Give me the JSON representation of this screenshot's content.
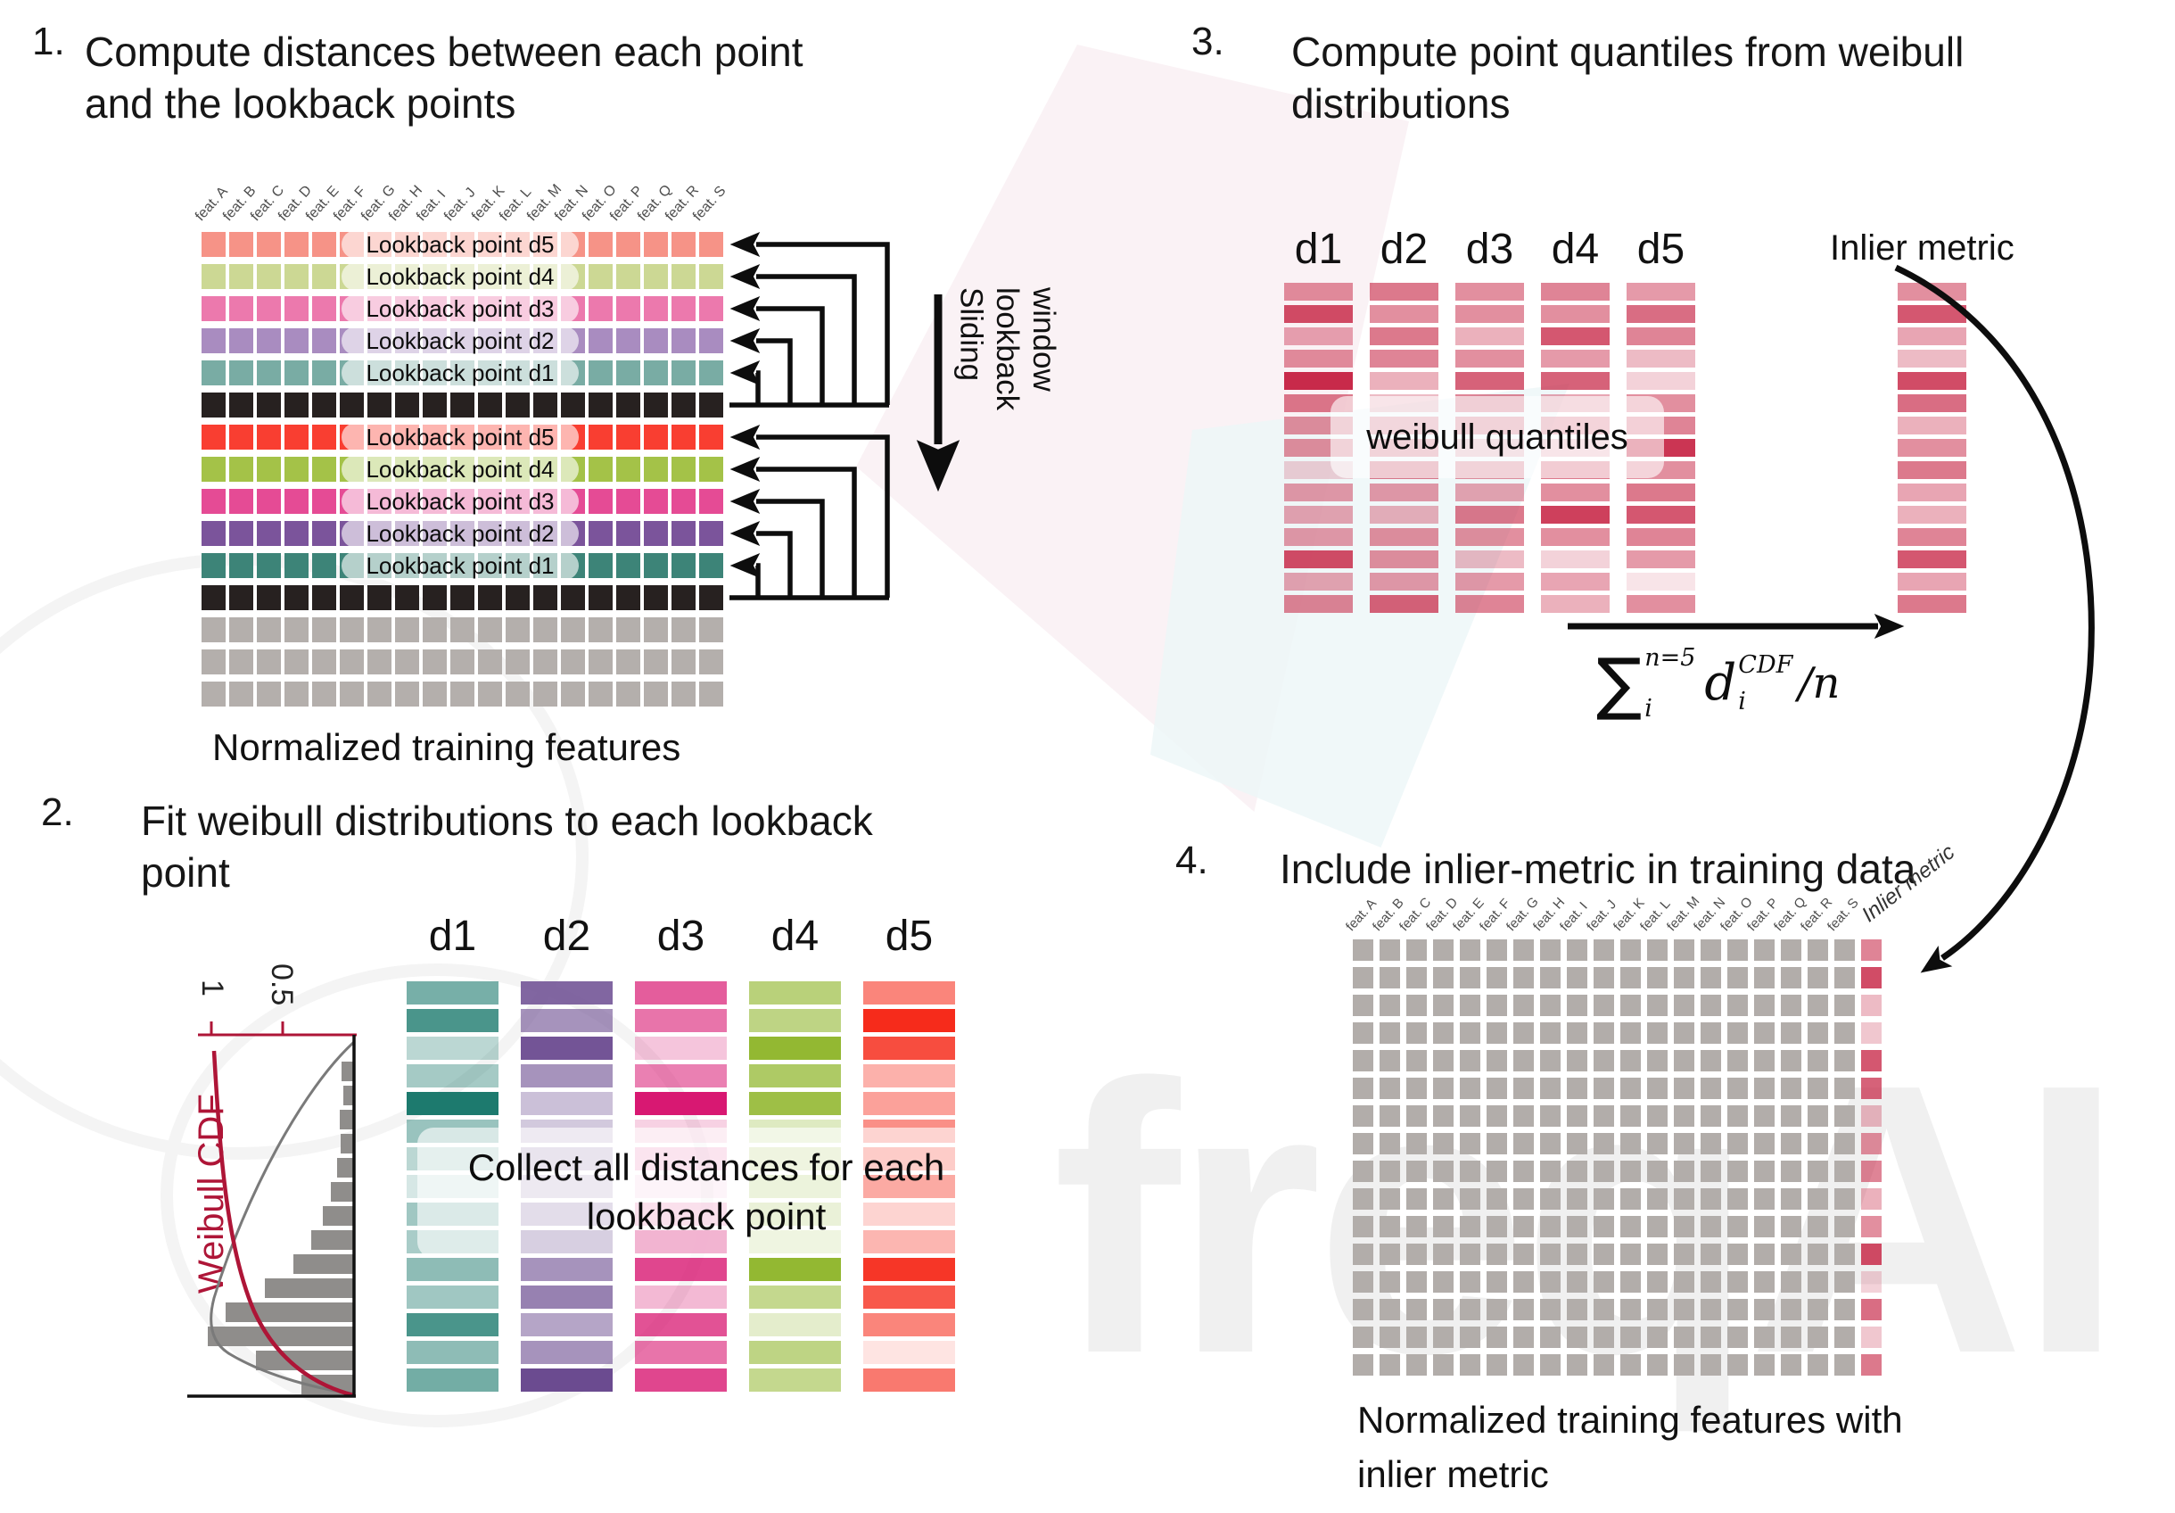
{
  "watermark": {
    "text": "freqAI"
  },
  "features": [
    "feat. A",
    "feat. B",
    "feat. C",
    "feat. D",
    "feat. E",
    "feat. F",
    "feat. G",
    "feat. H",
    "feat. I",
    "feat. J",
    "feat. K",
    "feat. L",
    "feat. M",
    "feat. N",
    "feat. O",
    "feat. P",
    "feat. Q",
    "feat. R",
    "feat. S"
  ],
  "d_labels": [
    "d1",
    "d2",
    "d3",
    "d4",
    "d5"
  ],
  "colors": {
    "black_cell": "#272120",
    "gray_cell": "#b4afac",
    "arrow": "#0d0d0d",
    "crimson_axis": "#ae1537",
    "hist_bar": "#8f8d8b",
    "p3_base": "#c51f40",
    "p4_gray": "#b2adaa"
  },
  "p1": {
    "number": "1.",
    "title": "Compute distances between each point and the lookback points",
    "caption": "Normalized training features",
    "sliding_label": "Sliding lookback window",
    "rows": [
      {
        "kind": "lookback",
        "color": "#f69387",
        "label": "Lookback point d5"
      },
      {
        "kind": "lookback",
        "color": "#ccd894",
        "label": "Lookback point d4"
      },
      {
        "kind": "lookback",
        "color": "#ec79ad",
        "label": "Lookback point d3"
      },
      {
        "kind": "lookback",
        "color": "#a98cc0",
        "label": "Lookback point d2"
      },
      {
        "kind": "lookback",
        "color": "#79aca4",
        "label": "Lookback point d1"
      },
      {
        "kind": "current",
        "color": "#272120"
      },
      {
        "kind": "lookback",
        "color": "#f93e31",
        "label": "Lookback point d5"
      },
      {
        "kind": "lookback",
        "color": "#a4c248",
        "label": "Lookback point d4"
      },
      {
        "kind": "lookback",
        "color": "#e54b95",
        "label": "Lookback point d3"
      },
      {
        "kind": "lookback",
        "color": "#7b549b",
        "label": "Lookback point d2"
      },
      {
        "kind": "lookback",
        "color": "#3d8478",
        "label": "Lookback point d1"
      },
      {
        "kind": "current",
        "color": "#272120"
      },
      {
        "kind": "plain",
        "color": "#b4afac"
      },
      {
        "kind": "plain",
        "color": "#b4afac"
      },
      {
        "kind": "plain",
        "color": "#b4afac"
      }
    ]
  },
  "p2": {
    "number": "2.",
    "title": "Fit weibull distributions to each lookback point",
    "note": "Collect all distances for each lookback point",
    "plot": {
      "cdf_label": "Weibull CDF",
      "ticks": [
        "1",
        "0.5"
      ],
      "hist": [
        14,
        12,
        16,
        15,
        19,
        26,
        35,
        48,
        68,
        100,
        144,
        164,
        110,
        59
      ]
    },
    "columns": [
      {
        "name": "d1",
        "color": "#1d7a6e",
        "opacities": [
          0.6,
          0.8,
          0.3,
          0.4,
          1.0,
          0.45,
          0.3,
          0.18,
          0.42,
          0.38,
          0.5,
          0.42,
          0.8,
          0.5,
          0.62
        ]
      },
      {
        "name": "d2",
        "color": "#6b4b90",
        "opacities": [
          0.85,
          0.6,
          0.95,
          0.6,
          0.35,
          0.3,
          0.4,
          0.32,
          0.5,
          0.7,
          0.6,
          0.7,
          0.5,
          0.6,
          1.0
        ]
      },
      {
        "name": "d3",
        "color": "#d81872",
        "opacities": [
          0.7,
          0.6,
          0.25,
          0.55,
          1.0,
          0.2,
          0.3,
          0.12,
          0.35,
          0.85,
          0.8,
          0.3,
          0.75,
          0.6,
          0.8
        ]
      },
      {
        "name": "d4",
        "color": "#93b832",
        "opacities": [
          0.65,
          0.6,
          1.0,
          0.75,
          0.9,
          0.3,
          0.4,
          0.45,
          0.5,
          0.38,
          1.0,
          0.55,
          0.25,
          0.6,
          0.55
        ]
      },
      {
        "name": "d5",
        "color": "#f5200f",
        "opacities": [
          0.55,
          0.95,
          0.8,
          0.35,
          0.42,
          0.5,
          0.6,
          1.0,
          0.5,
          0.85,
          0.9,
          0.75,
          0.55,
          0.12,
          0.6
        ]
      }
    ]
  },
  "p3": {
    "number": "3.",
    "title": "Compute point quantiles from weibull distributions",
    "overlay": "weibull quantiles",
    "inlier_header": "Inlier metric",
    "columns": [
      {
        "name": "d1",
        "opacities": [
          0.5,
          0.8,
          0.4,
          0.5,
          0.95,
          0.6,
          0.5,
          0.5,
          0.2,
          0.45,
          0.4,
          0.45,
          0.8,
          0.4,
          0.55
        ]
      },
      {
        "name": "d2",
        "opacities": [
          0.6,
          0.5,
          0.6,
          0.55,
          0.35,
          0.3,
          0.45,
          0.5,
          0.6,
          0.45,
          0.35,
          0.5,
          0.5,
          0.45,
          0.7
        ]
      },
      {
        "name": "d3",
        "opacities": [
          0.5,
          0.5,
          0.35,
          0.5,
          0.7,
          0.55,
          0.5,
          0.3,
          0.5,
          0.4,
          0.6,
          0.5,
          0.3,
          0.45,
          0.55
        ]
      },
      {
        "name": "d4",
        "opacities": [
          0.55,
          0.5,
          0.75,
          0.45,
          0.7,
          0.4,
          0.5,
          0.3,
          0.6,
          0.5,
          0.85,
          0.5,
          0.2,
          0.4,
          0.35
        ]
      },
      {
        "name": "d5",
        "opacities": [
          0.45,
          0.65,
          0.55,
          0.3,
          0.2,
          0.5,
          0.55,
          0.9,
          0.5,
          0.6,
          0.75,
          0.55,
          0.45,
          0.12,
          0.5
        ]
      }
    ],
    "inlier_opacities": [
      0.5,
      0.75,
      0.4,
      0.3,
      0.8,
      0.65,
      0.35,
      0.5,
      0.6,
      0.4,
      0.35,
      0.55,
      0.75,
      0.4,
      0.6
    ],
    "formula": {
      "sum": "∑",
      "sup": "n=5",
      "sub": "i",
      "d": "d",
      "d_sup": "CDF",
      "d_sub": "i",
      "tail": "/n"
    }
  },
  "p4": {
    "number": "4.",
    "title": "Include inlier-metric in training data",
    "inlier_label": "Inlier metric",
    "caption": "Normalized training features with inlier metric",
    "rows": 16,
    "inlier_opacities": [
      0.55,
      0.8,
      0.3,
      0.25,
      0.75,
      0.7,
      0.3,
      0.5,
      0.55,
      0.35,
      0.5,
      0.8,
      0.2,
      0.65,
      0.25,
      0.6
    ]
  }
}
